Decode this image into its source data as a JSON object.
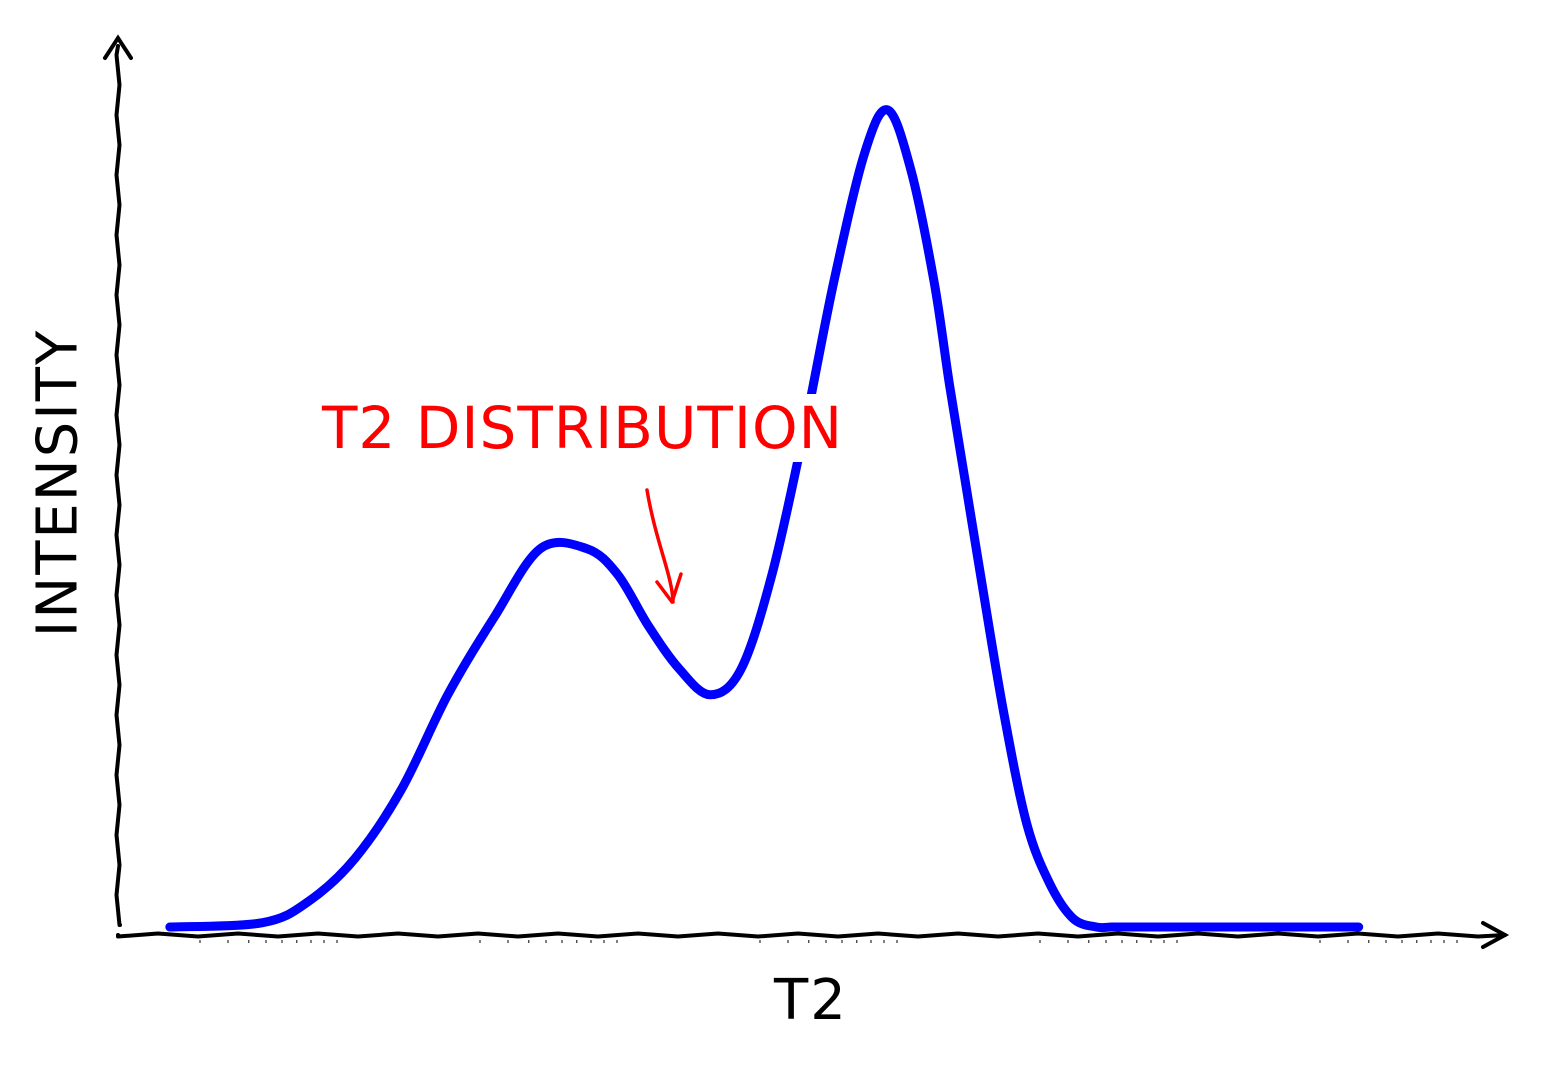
{
  "chart_data": {
    "type": "line",
    "title": "",
    "xlabel": "T2",
    "ylabel": "INTENSITY",
    "x_ticks_labeled": false,
    "y_ticks_labeled": false,
    "xlim": [
      0,
      1
    ],
    "ylim": [
      0,
      1
    ],
    "grid": false,
    "series": [
      {
        "color": "#0000ff",
        "x": [
          0.11,
          0.17,
          0.2,
          0.23,
          0.26,
          0.29,
          0.32,
          0.35,
          0.38,
          0.4,
          0.42,
          0.44,
          0.46,
          0.48,
          0.5,
          0.52,
          0.54,
          0.56,
          0.575,
          0.59,
          0.605,
          0.615,
          0.625,
          0.635,
          0.65,
          0.665,
          0.68,
          0.695,
          0.71,
          0.72,
          0.73,
          0.74,
          0.75,
          0.76,
          0.77,
          0.78,
          0.79,
          0.8,
          0.81,
          0.82,
          0.83,
          0.845,
          0.86,
          0.88
        ],
        "y": [
          0.0,
          0.005,
          0.03,
          0.08,
          0.16,
          0.27,
          0.36,
          0.44,
          0.44,
          0.41,
          0.35,
          0.3,
          0.27,
          0.3,
          0.41,
          0.57,
          0.75,
          0.9,
          0.95,
          0.88,
          0.75,
          0.63,
          0.52,
          0.41,
          0.25,
          0.12,
          0.05,
          0.01,
          0.0,
          0.0,
          0.0,
          0.0,
          0.0,
          0.0,
          0.0,
          0.0,
          0.0,
          0.0,
          0.0,
          0.0,
          0.0,
          0.0,
          0.0,
          0.0
        ]
      }
    ],
    "annotations": [
      {
        "text": "T2 DISTRIBUTION",
        "color": "#ff0000",
        "points_to": {
          "x": 0.4,
          "y": 0.44
        }
      }
    ]
  },
  "labels": {
    "x": "T2",
    "y": "INTENSITY",
    "annotation": "T2 DISTRIBUTION"
  },
  "colors": {
    "curve": "#0000ff",
    "annotation": "#ff0000",
    "axis": "#000000"
  }
}
